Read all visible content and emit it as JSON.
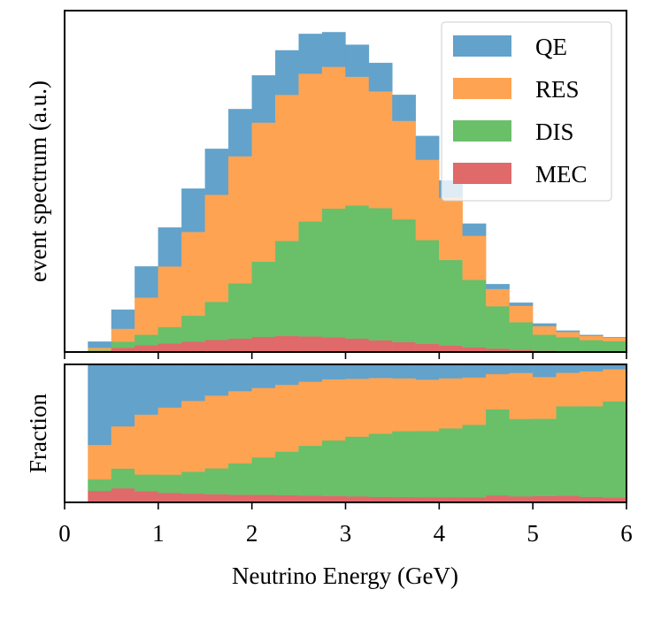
{
  "chart_data": {
    "type": "bar",
    "stacked": true,
    "bin_edges": [
      0.25,
      0.5,
      0.75,
      1.0,
      1.25,
      1.5,
      1.75,
      2.0,
      2.25,
      2.5,
      2.75,
      3.0,
      3.25,
      3.5,
      3.75,
      4.0,
      4.25,
      4.5,
      4.75,
      5.0,
      5.25,
      5.5,
      5.75,
      6.0
    ],
    "series": [
      {
        "name": "MEC",
        "color": "#e0696a",
        "values": [
          0.1,
          0.5,
          0.8,
          1.0,
          1.2,
          1.4,
          1.55,
          1.75,
          1.85,
          1.8,
          1.7,
          1.55,
          1.35,
          1.15,
          0.95,
          0.75,
          0.55,
          0.4,
          0.25,
          0.15,
          0.12,
          0.08,
          0.06
        ]
      },
      {
        "name": "DIS",
        "color": "#6abf69",
        "values": [
          0.1,
          0.7,
          1.2,
          1.9,
          3.0,
          4.4,
          6.4,
          8.7,
          11.0,
          13.3,
          14.9,
          15.4,
          15.3,
          14.2,
          12.0,
          9.9,
          7.8,
          4.9,
          3.2,
          1.85,
          1.6,
          1.3,
          1.2
        ]
      },
      {
        "name": "RES",
        "color": "#fda352",
        "values": [
          0.3,
          1.5,
          4.3,
          7.0,
          9.7,
          12.4,
          14.7,
          16.1,
          16.9,
          17.1,
          16.4,
          14.9,
          13.5,
          11.4,
          9.3,
          7.2,
          5.1,
          2.0,
          1.9,
          1.0,
          0.6,
          0.5,
          0.4
        ]
      },
      {
        "name": "QE",
        "color": "#62a2cb",
        "values": [
          0.7,
          2.2,
          3.6,
          4.5,
          5.0,
          5.3,
          5.45,
          5.45,
          5.15,
          4.6,
          4.0,
          3.7,
          3.3,
          3.0,
          2.75,
          2.0,
          1.4,
          0.55,
          0.35,
          0.3,
          0.15,
          0.1,
          0.06
        ]
      }
    ],
    "top_panel": {
      "ylabel": "event spectrum (a.u.)",
      "ylim": [
        0,
        39.5
      ]
    },
    "bottom_panel": {
      "ylabel": "Fraction",
      "ylim": [
        0,
        1
      ],
      "fraction": true
    },
    "xlabel": "Neutrino Energy (GeV)",
    "xlim": [
      0,
      6
    ],
    "xticks": [
      "0",
      "1",
      "2",
      "3",
      "4",
      "5",
      "6"
    ],
    "legend": {
      "location": "top-right",
      "order": [
        "QE",
        "RES",
        "DIS",
        "MEC"
      ]
    }
  }
}
